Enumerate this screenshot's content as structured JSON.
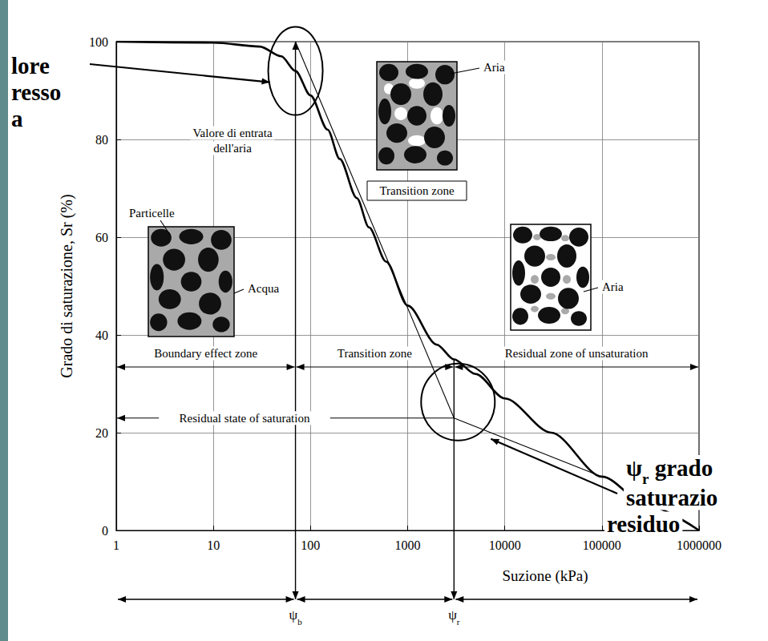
{
  "chart_data": {
    "type": "line",
    "xlabel": "Suzione (kPa)",
    "ylabel": "Grado di saturazione, Sr (%)",
    "log": "x",
    "xlim": [
      1,
      1000000
    ],
    "xticks": [
      1,
      10,
      100,
      1000,
      10000,
      100000,
      1000000
    ],
    "ylim": [
      0,
      100
    ],
    "yticks": [
      0,
      20,
      40,
      60,
      80,
      100
    ],
    "grid": true,
    "series": [
      {
        "type": "line",
        "color": "#000000",
        "line_style": "thick",
        "marker": "none",
        "x": [
          1,
          10,
          30,
          50,
          70,
          100,
          150,
          200,
          300,
          400,
          600,
          1000,
          2000,
          3000,
          5000,
          10000,
          30000,
          100000,
          300000,
          1000000
        ],
        "values": [
          100,
          99.8,
          99,
          97,
          94,
          89,
          82,
          76,
          68,
          62,
          55,
          46,
          38,
          35,
          32,
          27,
          20,
          11,
          5,
          0
        ]
      },
      {
        "type": "line",
        "color": "#000000",
        "line_style": "thin",
        "marker": "none",
        "x": [
          70,
          3000
        ],
        "values": [
          100,
          23
        ]
      },
      {
        "type": "line",
        "color": "#000000",
        "line_style": "thin",
        "marker": "none",
        "x": [
          3000,
          100000
        ],
        "values": [
          23,
          11
        ]
      }
    ],
    "markers": [
      {
        "label": "ψb",
        "x": 70
      },
      {
        "label": "ψr",
        "x": 3000
      }
    ],
    "zones": [
      "Boundary effect zone",
      "Transition zone",
      "Residual zone of unsaturation"
    ],
    "residual_state": {
      "label": "Residual state of saturation",
      "y": 23
    },
    "annotations": {
      "air_entry": [
        "Valore di entrata",
        "dell'aria"
      ],
      "left_callout": [
        "lore",
        "resso",
        "a"
      ],
      "right_callout": [
        "ψr grado",
        "saturazio",
        "residuo"
      ]
    },
    "images": [
      {
        "labels": [
          "Particelle",
          "Acqua"
        ]
      },
      {
        "labels": [
          "Aria"
        ],
        "caption": "Transition zone"
      },
      {
        "labels": [
          "Aria"
        ]
      }
    ]
  }
}
